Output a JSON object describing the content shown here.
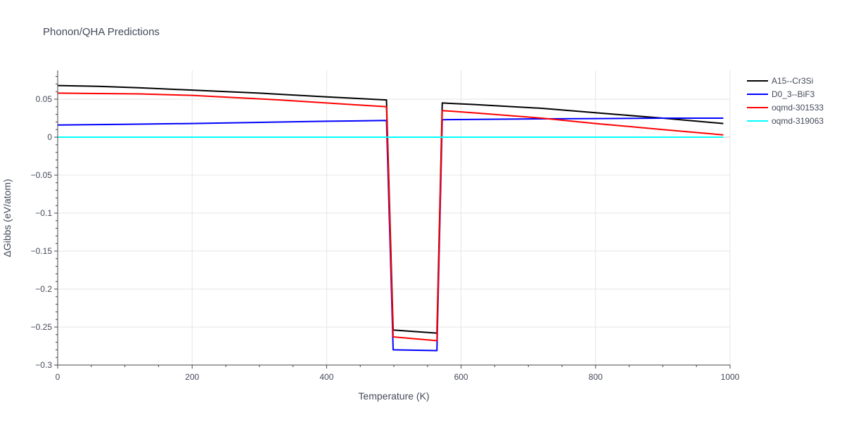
{
  "chart_data": {
    "type": "line",
    "title": "Phonon/QHA Predictions",
    "xlabel": "Temperature (K)",
    "ylabel": "ΔGibbs (eV/atom)",
    "xlim": [
      0,
      1000
    ],
    "ylim": [
      -0.3,
      0.088
    ],
    "xticks": [
      0,
      200,
      400,
      600,
      800,
      1000
    ],
    "xtick_labels": [
      "0",
      "200",
      "400",
      "600",
      "800",
      "1000"
    ],
    "yticks": [
      0.05,
      0,
      -0.05,
      -0.1,
      -0.15,
      -0.2,
      -0.25,
      -0.3
    ],
    "ytick_labels": [
      "0.05",
      "0",
      "−0.05",
      "−0.1",
      "−0.15",
      "−0.2",
      "−0.25",
      "−0.3"
    ],
    "grid": true,
    "legend_position": "top-right",
    "series": [
      {
        "name": "A15--Cr3Si",
        "color": "#000000",
        "x": [
          0,
          60,
          120,
          200,
          300,
          400,
          489,
          499,
          564,
          572,
          620,
          720,
          830,
          900,
          990
        ],
        "y": [
          0.068,
          0.067,
          0.065,
          0.062,
          0.058,
          0.053,
          0.049,
          -0.254,
          -0.258,
          0.045,
          0.043,
          0.038,
          0.03,
          0.025,
          0.018
        ]
      },
      {
        "name": "D0_3--BiF3",
        "color": "#0000ff",
        "x": [
          0,
          100,
          200,
          300,
          400,
          489,
          499,
          564,
          572,
          700,
          800,
          900,
          990
        ],
        "y": [
          0.016,
          0.017,
          0.018,
          0.0195,
          0.021,
          0.022,
          -0.28,
          -0.281,
          0.023,
          0.024,
          0.0245,
          0.025,
          0.025
        ]
      },
      {
        "name": "oqmd-301533",
        "color": "#ff0000",
        "x": [
          0,
          120,
          200,
          330,
          400,
          489,
          499,
          564,
          572,
          620,
          720,
          800,
          900,
          990
        ],
        "y": [
          0.058,
          0.057,
          0.055,
          0.049,
          0.045,
          0.04,
          -0.263,
          -0.268,
          0.035,
          0.032,
          0.025,
          0.018,
          0.01,
          0.003
        ]
      },
      {
        "name": "oqmd-319063",
        "color": "#00ffff",
        "x": [
          0,
          990
        ],
        "y": [
          0,
          0
        ]
      }
    ]
  }
}
